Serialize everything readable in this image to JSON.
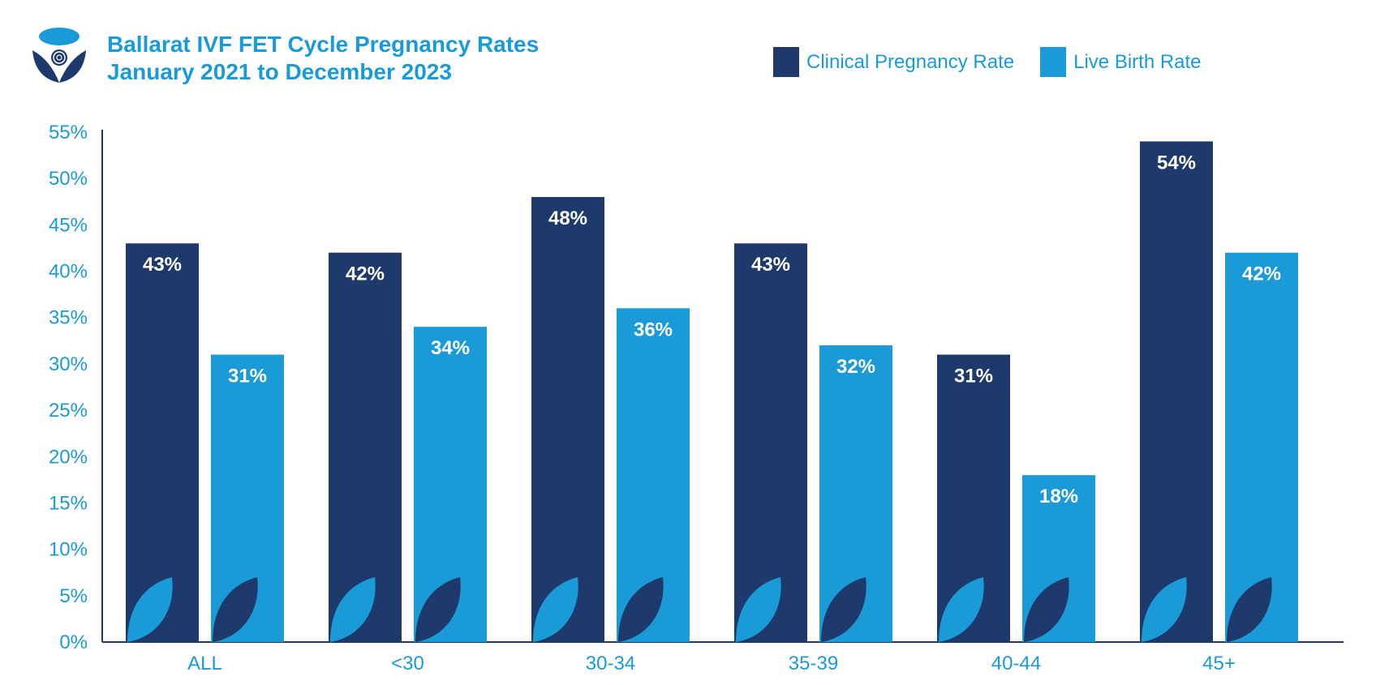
{
  "header": {
    "title_line1": "Ballarat IVF FET Cycle Pregnancy Rates",
    "title_line2": "January 2021 to December 2023"
  },
  "colors": {
    "clinical": "#1e3a6c",
    "live_birth": "#1a9ad6",
    "axis": "#1e3a6c",
    "axis_text": "#1a9ad6",
    "bar_label": "#ffffff"
  },
  "chart_data": {
    "type": "bar",
    "title": "Ballarat IVF FET Cycle Pregnancy Rates January 2021 to December 2023",
    "categories": [
      "ALL",
      "<30",
      "30-34",
      "35-39",
      "40-44",
      "45+"
    ],
    "series": [
      {
        "name": "Clinical Pregnancy Rate",
        "values": [
          43,
          42,
          48,
          43,
          31,
          54
        ],
        "labels": [
          "43%",
          "42%",
          "48%",
          "43%",
          "31%",
          "54%"
        ]
      },
      {
        "name": "Live Birth Rate",
        "values": [
          31,
          34,
          36,
          32,
          18,
          42
        ],
        "labels": [
          "31%",
          "34%",
          "36%",
          "32%",
          "18%",
          "42%"
        ]
      }
    ],
    "ylim": [
      0,
      55
    ],
    "yticks": [
      0,
      5,
      10,
      15,
      20,
      25,
      30,
      35,
      40,
      45,
      50,
      55
    ],
    "ytick_labels": [
      "0%",
      "5%",
      "10%",
      "15%",
      "20%",
      "25%",
      "30%",
      "35%",
      "40%",
      "45%",
      "50%",
      "55%"
    ],
    "xlabel": "",
    "ylabel": "",
    "grid": false,
    "legend": "top-right"
  }
}
